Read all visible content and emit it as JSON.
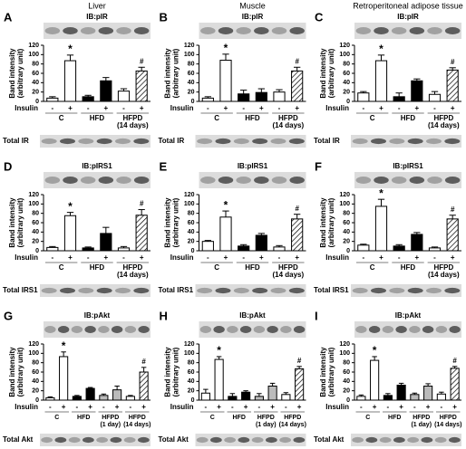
{
  "chart_data": [
    {
      "type": "bar",
      "label": "A",
      "title": "Liver",
      "blot_label": "IB:pIR",
      "ylabel": [
        "Band intensity",
        "(arbitrary unit)"
      ],
      "ylim": [
        0,
        120
      ],
      "yticks": [
        0,
        20,
        40,
        60,
        80,
        100,
        120
      ],
      "insulin_label": "Insulin",
      "categories": [
        "-",
        "+",
        "-",
        "+",
        "-",
        "+"
      ],
      "groups": [
        [
          "C"
        ],
        [
          "HFD"
        ],
        [
          "HFPD",
          "(14 days)"
        ]
      ],
      "values": [
        7,
        87,
        10,
        44,
        22,
        65
      ],
      "errors": [
        3,
        12,
        3,
        7,
        5,
        8
      ],
      "fills": [
        "#ffffff",
        "#ffffff",
        "#000000",
        "#000000",
        "#ffffff",
        "hatch"
      ],
      "annotations": [
        {
          "bar": 1,
          "text": "*"
        },
        {
          "bar": 5,
          "text": "#"
        }
      ],
      "total_label": "Total IR"
    },
    {
      "type": "bar",
      "label": "B",
      "title": "Muscle",
      "blot_label": "IB:pIR",
      "ylabel": [
        "Band intensity",
        "(arbitrary unit)"
      ],
      "ylim": [
        0,
        120
      ],
      "yticks": [
        0,
        20,
        40,
        60,
        80,
        100,
        120
      ],
      "insulin_label": "Insulin",
      "categories": [
        "-",
        "+",
        "-",
        "+",
        "-",
        "+"
      ],
      "groups": [
        [
          "C"
        ],
        [
          "HFD"
        ],
        [
          "HFPD",
          "(14 days)"
        ]
      ],
      "values": [
        7,
        88,
        16,
        19,
        20,
        65
      ],
      "errors": [
        3,
        13,
        8,
        8,
        5,
        8
      ],
      "fills": [
        "#ffffff",
        "#ffffff",
        "#000000",
        "#000000",
        "#ffffff",
        "hatch"
      ],
      "annotations": [
        {
          "bar": 1,
          "text": "*"
        },
        {
          "bar": 5,
          "text": "#"
        }
      ],
      "total_label": "Total IR"
    },
    {
      "type": "bar",
      "label": "C",
      "title": "Retroperitoneal adipose tissue",
      "blot_label": "IB:pIR",
      "ylabel": [
        "Band intensity",
        "(arbitrary unit)"
      ],
      "ylim": [
        0,
        120
      ],
      "yticks": [
        0,
        20,
        40,
        60,
        80,
        100,
        120
      ],
      "insulin_label": "Insulin",
      "categories": [
        "-",
        "+",
        "-",
        "+",
        "-",
        "+"
      ],
      "groups": [
        [
          "C"
        ],
        [
          "HFD"
        ],
        [
          "HFPD",
          "(14 days)"
        ]
      ],
      "values": [
        18,
        87,
        10,
        44,
        15,
        67
      ],
      "errors": [
        3,
        12,
        8,
        4,
        6,
        5
      ],
      "fills": [
        "#ffffff",
        "#ffffff",
        "#000000",
        "#000000",
        "#ffffff",
        "hatch"
      ],
      "annotations": [
        {
          "bar": 1,
          "text": "*"
        },
        {
          "bar": 5,
          "text": "#"
        }
      ],
      "total_label": "Total IR"
    },
    {
      "type": "bar",
      "label": "D",
      "blot_label": "IB:pIRS1",
      "ylabel": [
        "Band intensity",
        "(arbitrary unit)"
      ],
      "ylim": [
        0,
        120
      ],
      "yticks": [
        0,
        20,
        40,
        60,
        80,
        100,
        120
      ],
      "insulin_label": "Insulin",
      "categories": [
        "-",
        "+",
        "-",
        "+",
        "-",
        "+"
      ],
      "groups": [
        [
          "C"
        ],
        [
          "HFD"
        ],
        [
          "HFPD",
          "(14 days)"
        ]
      ],
      "values": [
        7,
        75,
        6,
        37,
        6,
        76
      ],
      "errors": [
        2,
        7,
        2,
        13,
        3,
        12
      ],
      "fills": [
        "#ffffff",
        "#ffffff",
        "#000000",
        "#000000",
        "#ffffff",
        "hatch"
      ],
      "annotations": [
        {
          "bar": 1,
          "text": "*"
        },
        {
          "bar": 5,
          "text": "#"
        }
      ],
      "total_label": "Total IRS1"
    },
    {
      "type": "bar",
      "label": "E",
      "blot_label": "IB:pIRS1",
      "ylabel": [
        "Band intensity",
        "(arbitrary unit)"
      ],
      "ylim": [
        0,
        120
      ],
      "yticks": [
        0,
        20,
        40,
        60,
        80,
        100,
        120
      ],
      "insulin_label": "Insulin",
      "categories": [
        "-",
        "+",
        "-",
        "+",
        "-",
        "+"
      ],
      "groups": [
        [
          "C"
        ],
        [
          "HFD"
        ],
        [
          "HFPD",
          "(14 days)"
        ]
      ],
      "values": [
        20,
        72,
        10,
        33,
        8,
        68
      ],
      "errors": [
        2,
        13,
        3,
        4,
        3,
        10
      ],
      "fills": [
        "#ffffff",
        "#ffffff",
        "#000000",
        "#000000",
        "#ffffff",
        "hatch"
      ],
      "annotations": [
        {
          "bar": 1,
          "text": "*"
        },
        {
          "bar": 5,
          "text": "#"
        }
      ],
      "total_label": "Total IRS1"
    },
    {
      "type": "bar",
      "label": "F",
      "blot_label": "IB:pIRS1",
      "ylabel": [
        "Band intensity",
        "(arbitrary unit)"
      ],
      "ylim": [
        0,
        120
      ],
      "yticks": [
        0,
        20,
        40,
        60,
        80,
        100,
        120
      ],
      "insulin_label": "Insulin",
      "categories": [
        "-",
        "+",
        "-",
        "+",
        "-",
        "+"
      ],
      "groups": [
        [
          "C"
        ],
        [
          "HFD"
        ],
        [
          "HFPD",
          "(14 days)"
        ]
      ],
      "values": [
        12,
        95,
        10,
        35,
        6,
        68
      ],
      "errors": [
        2,
        15,
        3,
        4,
        2,
        8
      ],
      "fills": [
        "#ffffff",
        "#ffffff",
        "#000000",
        "#000000",
        "#ffffff",
        "hatch"
      ],
      "annotations": [
        {
          "bar": 1,
          "text": "*"
        },
        {
          "bar": 5,
          "text": "#"
        }
      ],
      "total_label": "Total IRS1"
    },
    {
      "type": "bar",
      "label": "G",
      "blot_label": "IB:pAkt",
      "ylabel": [
        "Band intensity",
        "(arbitrary unit)"
      ],
      "ylim": [
        0,
        120
      ],
      "yticks": [
        0,
        20,
        40,
        60,
        80,
        100,
        120
      ],
      "insulin_label": "Insulin",
      "categories": [
        "-",
        "+",
        "-",
        "+",
        "-",
        "+",
        "-",
        "+"
      ],
      "groups": [
        [
          "C"
        ],
        [
          "HFD"
        ],
        [
          "HFPD",
          "(1 day)"
        ],
        [
          "HFPD",
          "(14 days)"
        ]
      ],
      "values": [
        5,
        93,
        8,
        25,
        10,
        22,
        8,
        60
      ],
      "errors": [
        2,
        10,
        2,
        2,
        3,
        8,
        2,
        10
      ],
      "fills": [
        "#ffffff",
        "#ffffff",
        "#000000",
        "#000000",
        "#bbbbbb",
        "#bbbbbb",
        "#ffffff",
        "hatch"
      ],
      "annotations": [
        {
          "bar": 1,
          "text": "*"
        },
        {
          "bar": 7,
          "text": "#"
        }
      ],
      "total_label": "Total Akt"
    },
    {
      "type": "bar",
      "label": "H",
      "blot_label": "IB:pAkt",
      "ylabel": [
        "Band intensity",
        "(arbitrary unit)"
      ],
      "ylim": [
        0,
        120
      ],
      "yticks": [
        0,
        20,
        40,
        60,
        80,
        100,
        120
      ],
      "insulin_label": "Insulin",
      "categories": [
        "-",
        "+",
        "-",
        "+",
        "-",
        "+",
        "-",
        "+"
      ],
      "groups": [
        [
          "C"
        ],
        [
          "HFD"
        ],
        [
          "HFPD",
          "(1 day)"
        ],
        [
          "HFPD",
          "(14 days)"
        ]
      ],
      "values": [
        15,
        87,
        8,
        17,
        8,
        30,
        12,
        67
      ],
      "errors": [
        8,
        6,
        6,
        3,
        6,
        6,
        4,
        5
      ],
      "fills": [
        "#ffffff",
        "#ffffff",
        "#000000",
        "#000000",
        "#bbbbbb",
        "#bbbbbb",
        "#ffffff",
        "hatch"
      ],
      "annotations": [
        {
          "bar": 1,
          "text": "*"
        },
        {
          "bar": 7,
          "text": "#"
        }
      ],
      "total_label": "Total Akt"
    },
    {
      "type": "bar",
      "label": "I",
      "blot_label": "IB:pAkt",
      "ylabel": [
        "Band intensity",
        "(arbitrary unit)"
      ],
      "ylim": [
        0,
        120
      ],
      "yticks": [
        0,
        20,
        40,
        60,
        80,
        100,
        120
      ],
      "insulin_label": "Insulin",
      "categories": [
        "-",
        "+",
        "-",
        "+",
        "-",
        "+",
        "-",
        "+"
      ],
      "groups": [
        [
          "C"
        ],
        [
          "HFD"
        ],
        [
          "HFPD",
          "(1 day)"
        ],
        [
          "HFPD",
          "(14 days)"
        ]
      ],
      "values": [
        8,
        85,
        10,
        32,
        12,
        30,
        13,
        68
      ],
      "errors": [
        3,
        8,
        4,
        4,
        3,
        5,
        4,
        4
      ],
      "fills": [
        "#ffffff",
        "#ffffff",
        "#000000",
        "#000000",
        "#bbbbbb",
        "#bbbbbb",
        "#ffffff",
        "hatch"
      ],
      "annotations": [
        {
          "bar": 1,
          "text": "*"
        },
        {
          "bar": 7,
          "text": "#"
        }
      ],
      "total_label": "Total Akt"
    }
  ]
}
